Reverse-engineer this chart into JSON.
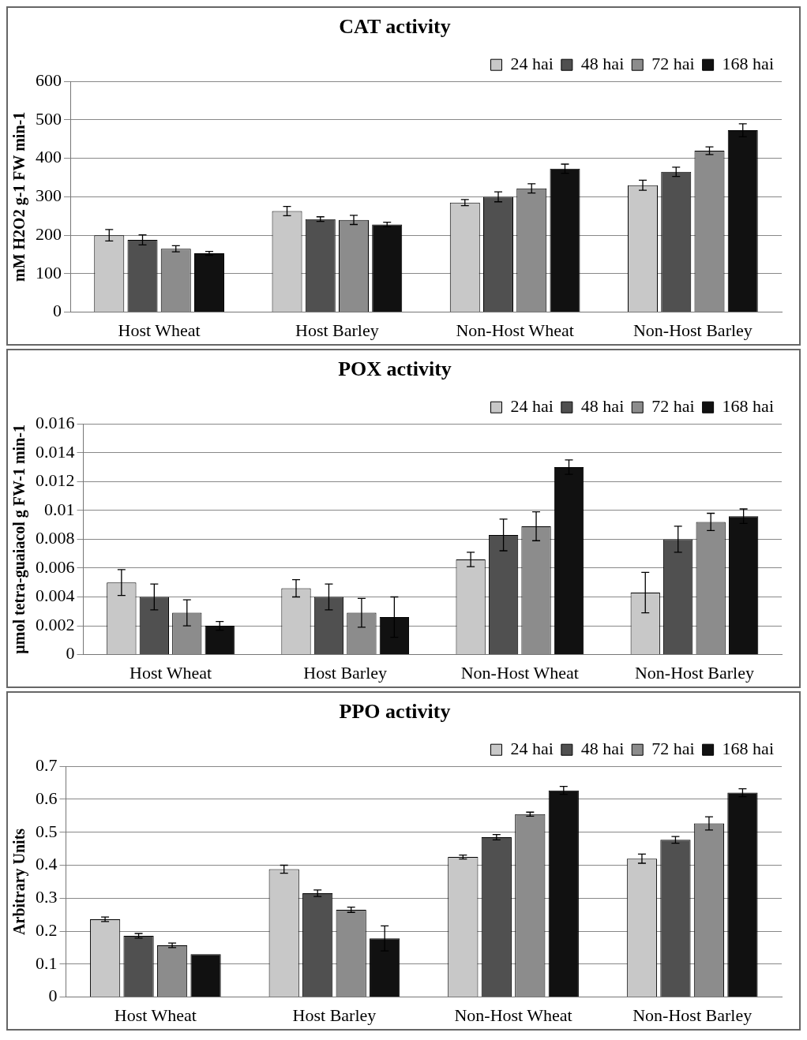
{
  "chart_data": [
    {
      "type": "bar",
      "title": "CAT activity",
      "ylabel": "mM H2O2 g-1 FW min-1",
      "categories": [
        "Host Wheat",
        "Host Barley",
        "Non-Host Wheat",
        "Non-Host Barley"
      ],
      "series": [
        {
          "name": "24 hai",
          "color": "#c8c8c8",
          "values": [
            200,
            263,
            285,
            330
          ],
          "errors": [
            15,
            12,
            8,
            13
          ]
        },
        {
          "name": "48 hai",
          "color": "#505050",
          "values": [
            188,
            242,
            300,
            365
          ],
          "errors": [
            13,
            6,
            13,
            12
          ]
        },
        {
          "name": "72 hai",
          "color": "#8c8c8c",
          "values": [
            165,
            240,
            322,
            420
          ],
          "errors": [
            8,
            12,
            12,
            10
          ]
        },
        {
          "name": "168 hai",
          "color": "#111111",
          "values": [
            153,
            228,
            373,
            473
          ],
          "errors": [
            5,
            6,
            12,
            17
          ]
        }
      ],
      "ylim": [
        0,
        600
      ],
      "yticks": [
        0,
        100,
        200,
        300,
        400,
        500,
        600
      ],
      "grid": "y",
      "legend": "top right"
    },
    {
      "type": "bar",
      "title": "POX activity",
      "ylabel": "µmol tetra-guaiacol g FW-1 min-1",
      "categories": [
        "Host Wheat",
        "Host Barley",
        "Non-Host Wheat",
        "Non-Host Barley"
      ],
      "series": [
        {
          "name": "24 hai",
          "color": "#c8c8c8",
          "values": [
            0.005,
            0.0046,
            0.0066,
            0.0043
          ],
          "errors": [
            0.0009,
            0.0006,
            0.0005,
            0.0014
          ]
        },
        {
          "name": "48 hai",
          "color": "#505050",
          "values": [
            0.004,
            0.004,
            0.0083,
            0.008
          ],
          "errors": [
            0.0009,
            0.0009,
            0.0011,
            0.0009
          ]
        },
        {
          "name": "72 hai",
          "color": "#8c8c8c",
          "values": [
            0.0029,
            0.0029,
            0.0089,
            0.0092
          ],
          "errors": [
            0.0009,
            0.001,
            0.001,
            0.0006
          ]
        },
        {
          "name": "168 hai",
          "color": "#111111",
          "values": [
            0.002,
            0.0026,
            0.013,
            0.0096
          ],
          "errors": [
            0.0003,
            0.0014,
            0.0005,
            0.0005
          ]
        }
      ],
      "ylim": [
        0,
        0.016
      ],
      "yticks": [
        0,
        0.002,
        0.004,
        0.006,
        0.008,
        0.01,
        0.012,
        0.014,
        0.016
      ],
      "grid": "y",
      "legend": "top right"
    },
    {
      "type": "bar",
      "title": "PPO activity",
      "ylabel": "Arbitrary Units",
      "categories": [
        "Host Wheat",
        "Host Barley",
        "Non-Host Wheat",
        "Non-Host Barley"
      ],
      "series": [
        {
          "name": "24 hai",
          "color": "#c8c8c8",
          "values": [
            0.236,
            0.388,
            0.425,
            0.42
          ],
          "errors": [
            0.007,
            0.012,
            0.006,
            0.014
          ]
        },
        {
          "name": "48 hai",
          "color": "#505050",
          "values": [
            0.186,
            0.315,
            0.485,
            0.477
          ],
          "errors": [
            0.007,
            0.01,
            0.008,
            0.01
          ]
        },
        {
          "name": "72 hai",
          "color": "#8c8c8c",
          "values": [
            0.157,
            0.265,
            0.555,
            0.527
          ],
          "errors": [
            0.007,
            0.008,
            0.006,
            0.02
          ]
        },
        {
          "name": "168 hai",
          "color": "#111111",
          "values": [
            0.13,
            0.178,
            0.627,
            0.62
          ],
          "errors": [
            null,
            0.038,
            0.012,
            0.012
          ]
        }
      ],
      "ylim": [
        0,
        0.7
      ],
      "yticks": [
        0,
        0.1,
        0.2,
        0.3,
        0.4,
        0.5,
        0.6,
        0.7
      ],
      "grid": "y",
      "legend": "top right"
    }
  ]
}
